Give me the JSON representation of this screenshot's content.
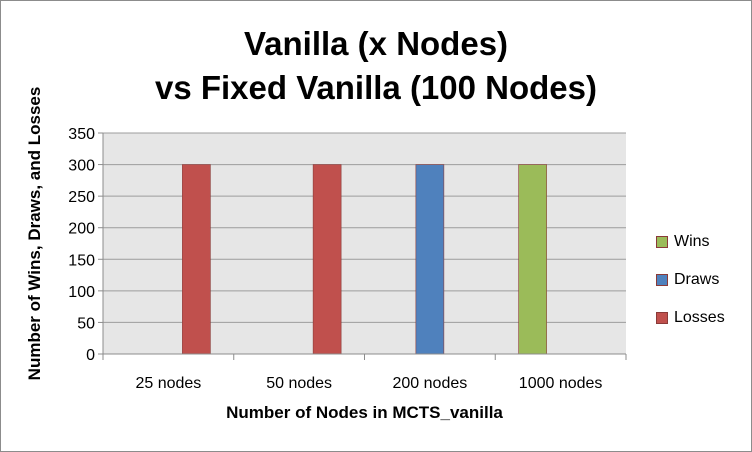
{
  "chart_data": {
    "type": "bar",
    "title_line1": "Vanilla (x Nodes)",
    "title_line2": "vs Fixed Vanilla (100 Nodes)",
    "xlabel": "Number of Nodes in MCTS_vanilla",
    "ylabel": "Number of  Wins, Draws, and Losses",
    "categories": [
      "25 nodes",
      "50 nodes",
      "200 nodes",
      "1000 nodes"
    ],
    "ylim": [
      0,
      350
    ],
    "yticks": [
      0,
      50,
      100,
      150,
      200,
      250,
      300,
      350
    ],
    "grid": true,
    "legend_position": "right",
    "series": [
      {
        "name": "Wins",
        "color": "#9bbb59",
        "values": [
          0,
          0,
          0,
          300
        ]
      },
      {
        "name": "Draws",
        "color": "#4f81bd",
        "values": [
          0,
          0,
          300,
          0
        ]
      },
      {
        "name": "Losses",
        "color": "#c0504d",
        "values": [
          300,
          300,
          0,
          0
        ]
      }
    ]
  }
}
